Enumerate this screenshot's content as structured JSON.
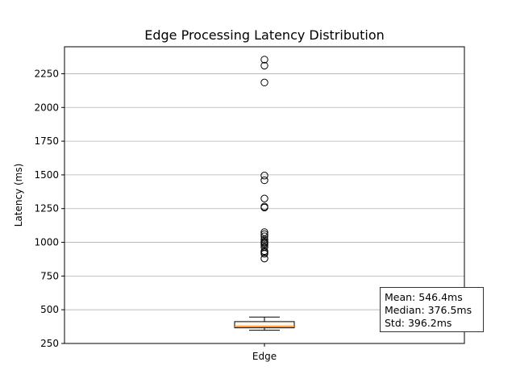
{
  "chart_data": {
    "type": "box",
    "title": "Edge Processing Latency Distribution",
    "xlabel": "",
    "ylabel": "Latency (ms)",
    "categories": [
      "Edge"
    ],
    "ylim": [
      250,
      2450
    ],
    "yticks": [
      250,
      500,
      750,
      1000,
      1250,
      1500,
      1750,
      2000,
      2250
    ],
    "grid": "horizontal",
    "box": {
      "whisker_low": 348,
      "q1": 366,
      "median": 376.5,
      "q3": 412,
      "whisker_high": 446
    },
    "outliers": [
      2355,
      2310,
      2185,
      1495,
      1460,
      1325,
      1265,
      1258,
      1075,
      1060,
      1045,
      1020,
      1005,
      998,
      990,
      980,
      965,
      935,
      925,
      915,
      880
    ],
    "stats": {
      "mean": "Mean: 546.4ms",
      "median": "Median: 376.5ms",
      "std": "Std: 396.2ms"
    },
    "colors": {
      "median": "#ff7f0e",
      "box_fill": "#fdf6ea",
      "grid": "#b0b0b0"
    }
  }
}
